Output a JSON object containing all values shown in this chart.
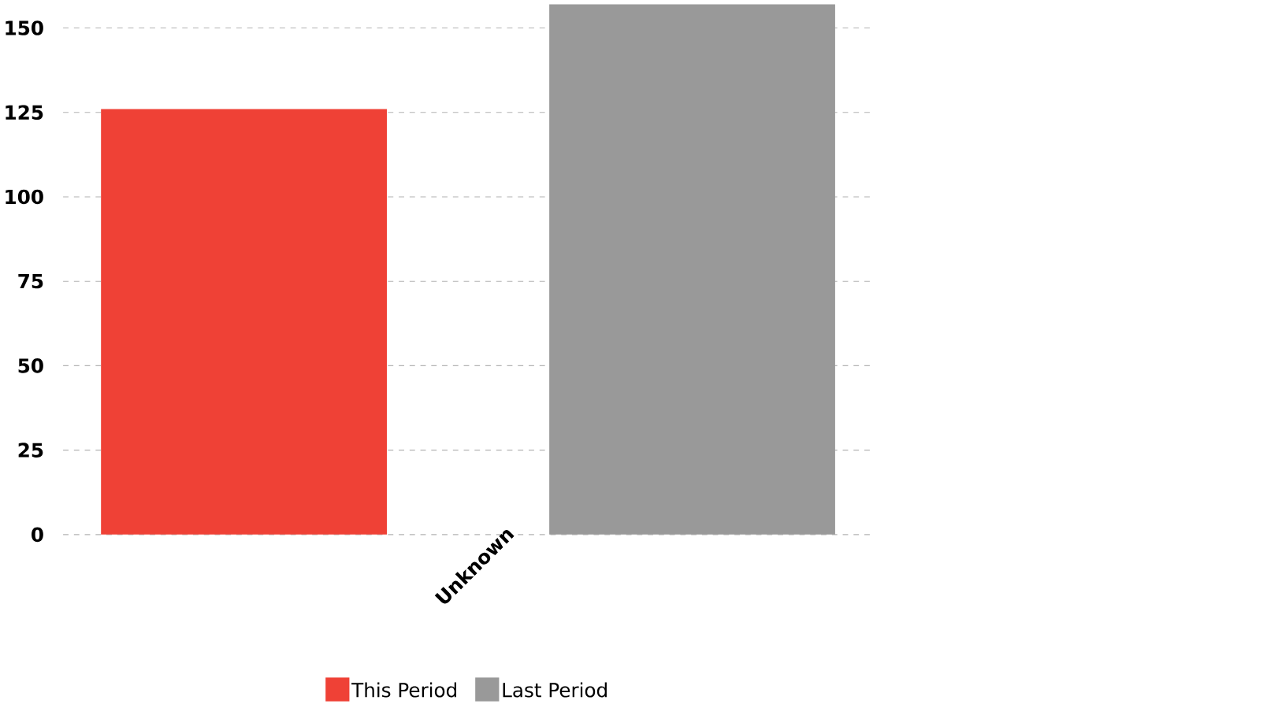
{
  "chart_data": {
    "type": "bar",
    "categories": [
      "Unknown"
    ],
    "series": [
      {
        "name": "This Period",
        "color": "#ef4136",
        "values": [
          126
        ]
      },
      {
        "name": "Last Period",
        "color": "#999999",
        "values": [
          157
        ]
      }
    ],
    "ylim": [
      0,
      157
    ],
    "yticks": [
      0,
      25,
      50,
      75,
      100,
      125,
      150
    ],
    "grid": "y",
    "legend": "bottom"
  }
}
